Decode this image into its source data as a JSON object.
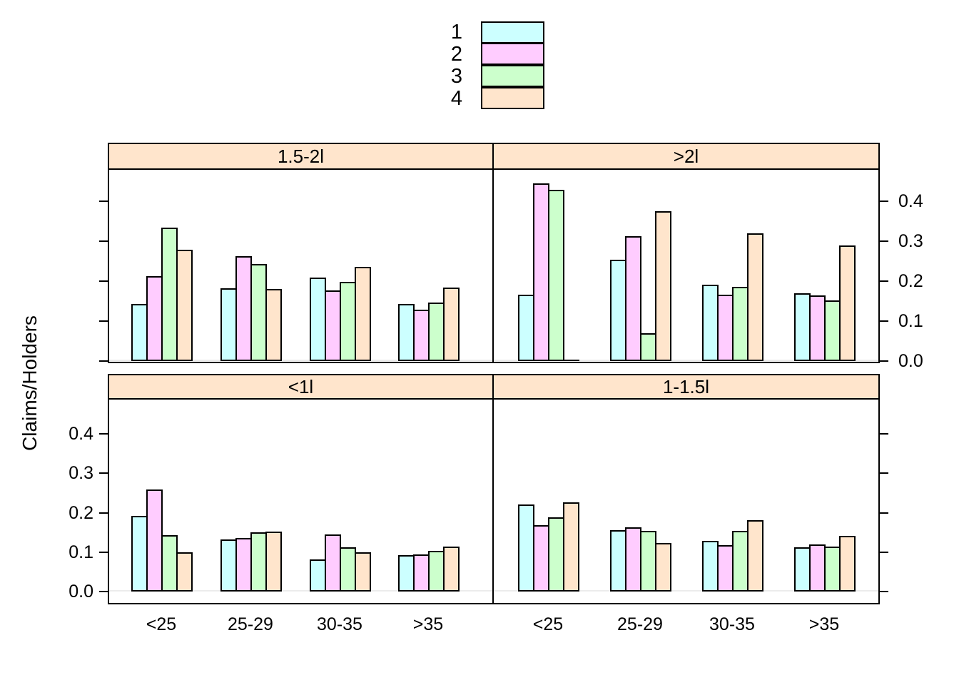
{
  "legend": {
    "entries": [
      {
        "label": "1",
        "color": "#CCFFFF"
      },
      {
        "label": "2",
        "color": "#FFCCFF"
      },
      {
        "label": "3",
        "color": "#CCFFCC"
      },
      {
        "label": "4",
        "color": "#FFE5CC"
      }
    ]
  },
  "colors": {
    "strip_background": "#FFE5CC",
    "panel_border": "#000000",
    "zero_reference_line": "#ECECEC",
    "bar_outline": "#000000"
  },
  "chart_data": {
    "type": "bar",
    "layout": "2x2 trellis, grouped bars",
    "title": "",
    "ylabel": "Claims/Holders",
    "xlabel": "",
    "categories": [
      "<25",
      "25-29",
      "30-35",
      ">35"
    ],
    "groups": [
      "1",
      "2",
      "3",
      "4"
    ],
    "group_colors": [
      "#CCFFFF",
      "#FFCCFF",
      "#CCFFCC",
      "#FFE5CC"
    ],
    "ylim": [
      0,
      0.45
    ],
    "y_tick_values": [
      0.0,
      0.1,
      0.2,
      0.3,
      0.4
    ],
    "y_tick_labels": [
      "0.0",
      "0.1",
      "0.2",
      "0.3",
      "0.4"
    ],
    "legend_position": "top-center",
    "grid": "off",
    "panels": [
      {
        "title": "1.5-2l",
        "position": "top-left",
        "series": [
          {
            "name": "1",
            "values": [
              0.1429,
              0.1818,
              0.2085,
              0.1421
            ]
          },
          {
            "name": "2",
            "values": [
              0.2121,
              0.2629,
              0.1765,
              0.1288
            ]
          },
          {
            "name": "3",
            "values": [
              0.3333,
              0.2436,
              0.1983,
              0.146
            ]
          },
          {
            "name": "4",
            "values": [
              0.2778,
              0.1795,
              0.2353,
              0.1831
            ]
          }
        ]
      },
      {
        "title": ">2l",
        "position": "top-right",
        "series": [
          {
            "name": "1",
            "values": [
              0.1667,
              0.2535,
              0.1919,
              0.1704
            ]
          },
          {
            "name": "2",
            "values": [
              0.4444,
              0.3125,
              0.1667,
              0.1646
            ]
          },
          {
            "name": "3",
            "values": [
              0.4286,
              0.069,
              0.186,
              0.151
            ]
          },
          {
            "name": "4",
            "values": [
              0.0,
              0.375,
              0.32,
              0.2895
            ]
          }
        ]
      },
      {
        "title": "<1l",
        "position": "bottom-left",
        "series": [
          {
            "name": "1",
            "values": [
              0.1929,
              0.1326,
              0.0813,
              0.0929
            ]
          },
          {
            "name": "2",
            "values": [
              0.2588,
              0.1367,
              0.1457,
              0.0934
            ]
          },
          {
            "name": "3",
            "values": [
              0.1429,
              0.1507,
              0.1124,
              0.1034
            ]
          },
          {
            "name": "4",
            "values": [
              0.1,
              0.1515,
              0.1,
              0.1139
            ]
          }
        ]
      },
      {
        "title": "1-1.5l",
        "position": "bottom-right",
        "series": [
          {
            "name": "1",
            "values": [
              0.2218,
              0.1567,
              0.1279,
              0.1117
            ]
          },
          {
            "name": "2",
            "values": [
              0.1678,
              0.1629,
              0.1169,
              0.1187
            ]
          },
          {
            "name": "3",
            "values": [
              0.1887,
              0.1548,
              0.1542,
              0.1144
            ]
          },
          {
            "name": "4",
            "values": [
              0.2258,
              0.1235,
              0.1803,
              0.1409
            ]
          }
        ]
      }
    ]
  }
}
